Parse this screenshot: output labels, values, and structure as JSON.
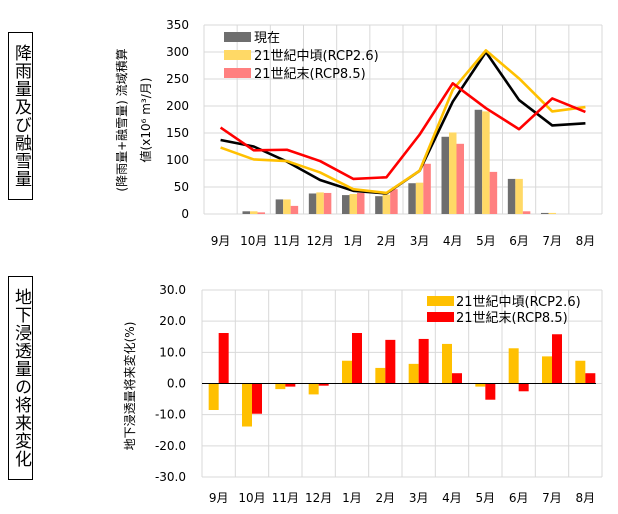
{
  "panels": {
    "top_label": "降雨量及び融雪量",
    "bottom_label": "地下浸透量の将来変化"
  },
  "colors": {
    "current": "#000000",
    "current_bar": "#6e6e6e",
    "mid": "#ffc000",
    "mid_bar": "#ffd966",
    "end": "#ff0000",
    "end_bar": "#ff8080",
    "grid": "#d9d9d9"
  },
  "chart_data": [
    {
      "type": "bar+line",
      "ylabel_line1": "(降雨量+融雪量) 流域積算",
      "ylabel_line2": "値(x10⁶ m³/月)",
      "ylim": [
        0,
        350
      ],
      "yticks": [
        "0",
        "50",
        "100",
        "150",
        "200",
        "250",
        "300",
        "350"
      ],
      "categories": [
        "9月",
        "10月",
        "11月",
        "12月",
        "1月",
        "2月",
        "3月",
        "4月",
        "5月",
        "6月",
        "7月",
        "8月"
      ],
      "legend": [
        "現在",
        "21世紀中頃(RCP2.6)",
        "21世紀末(RCP8.5)"
      ],
      "legend_position": "top-left",
      "grid": true,
      "bars": [
        {
          "name": "現在",
          "values": [
            0,
            5,
            27,
            38,
            35,
            33,
            57,
            143,
            193,
            65,
            2,
            0
          ]
        },
        {
          "name": "21世紀中頃(RCP2.6)",
          "values": [
            0,
            5,
            27,
            40,
            37,
            36,
            58,
            151,
            190,
            65,
            2,
            0
          ]
        },
        {
          "name": "21世紀末(RCP8.5)",
          "values": [
            0,
            3,
            15,
            39,
            39,
            46,
            93,
            130,
            78,
            5,
            0,
            0
          ]
        }
      ],
      "lines": [
        {
          "name": "現在",
          "values": [
            137,
            125,
            97,
            63,
            43,
            38,
            80,
            208,
            300,
            211,
            164,
            168
          ]
        },
        {
          "name": "21世紀中頃(RCP2.6)",
          "values": [
            123,
            101,
            98,
            77,
            46,
            39,
            80,
            230,
            303,
            251,
            190,
            198
          ]
        },
        {
          "name": "21世紀末(RCP8.5)",
          "values": [
            160,
            118,
            119,
            98,
            65,
            68,
            147,
            242,
            196,
            157,
            214,
            189
          ]
        }
      ]
    },
    {
      "type": "bar",
      "ylabel": "地下浸透量将来変化(%)",
      "ylim": [
        -30,
        30
      ],
      "yticks": [
        "-30.0",
        "-20.0",
        "-10.0",
        "0.0",
        "10.0",
        "20.0",
        "30.0"
      ],
      "categories": [
        "9月",
        "10月",
        "11月",
        "12月",
        "1月",
        "2月",
        "3月",
        "4月",
        "5月",
        "6月",
        "7月",
        "8月"
      ],
      "legend_position": "top-right",
      "grid": true,
      "series": [
        {
          "name": "21世紀中頃(RCP2.6)",
          "values": [
            -8.5,
            -13.8,
            -1.8,
            -3.5,
            7.3,
            5.0,
            6.3,
            12.7,
            -1.0,
            11.3,
            8.7,
            7.3
          ]
        },
        {
          "name": "21世紀末(RCP8.5)",
          "values": [
            16.2,
            -9.7,
            -1.0,
            -0.7,
            16.2,
            14.0,
            14.3,
            3.3,
            -5.2,
            -2.5,
            15.8,
            3.3
          ]
        }
      ]
    }
  ]
}
